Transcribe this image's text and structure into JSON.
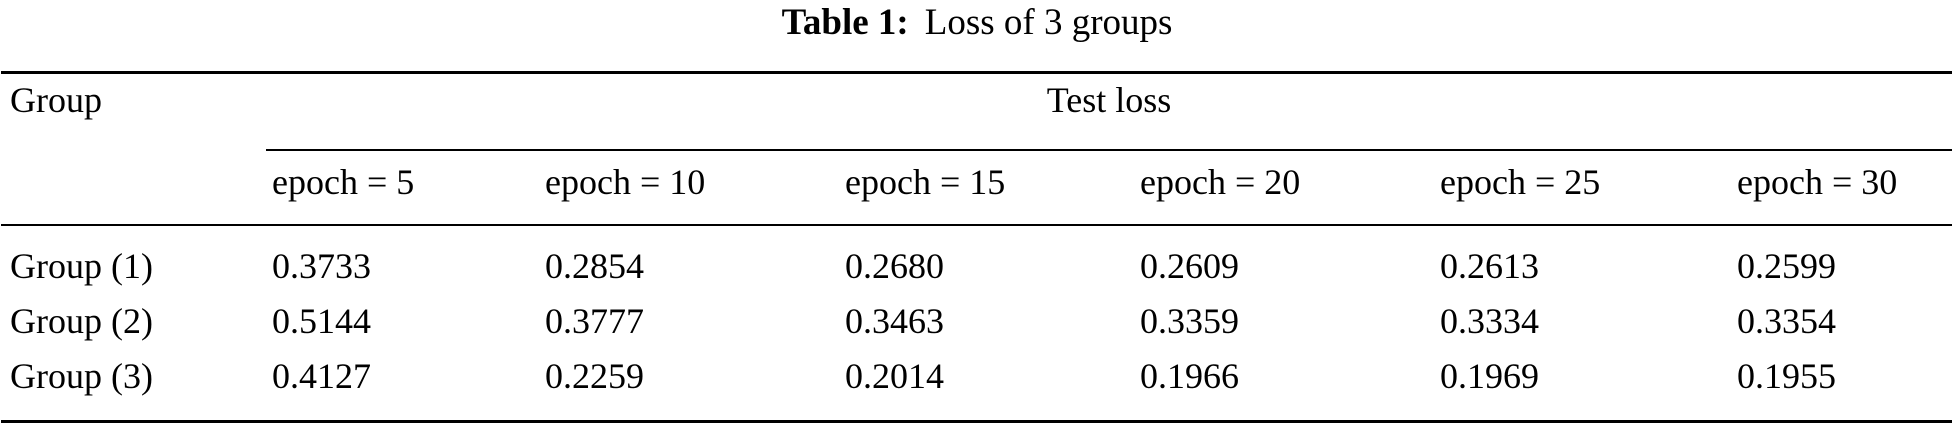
{
  "caption": {
    "label": "Table 1:",
    "text": "Loss of 3 groups"
  },
  "table": {
    "stub_header": "Group",
    "span_header": "Test loss",
    "col_headers": [
      "epoch = 5",
      "epoch = 10",
      "epoch = 15",
      "epoch = 20",
      "epoch = 25",
      "epoch = 30"
    ],
    "rows": [
      {
        "label": "Group (1)",
        "values": [
          "0.3733",
          "0.2854",
          "0.2680",
          "0.2609",
          "0.2613",
          "0.2599"
        ]
      },
      {
        "label": "Group (2)",
        "values": [
          "0.5144",
          "0.3777",
          "0.3463",
          "0.3359",
          "0.3334",
          "0.3354"
        ]
      },
      {
        "label": "Group (3)",
        "values": [
          "0.4127",
          "0.2259",
          "0.2014",
          "0.1966",
          "0.1969",
          "0.1955"
        ]
      }
    ]
  },
  "colors": {
    "background": "#ffffff",
    "text": "#000000",
    "rule": "#000000"
  }
}
